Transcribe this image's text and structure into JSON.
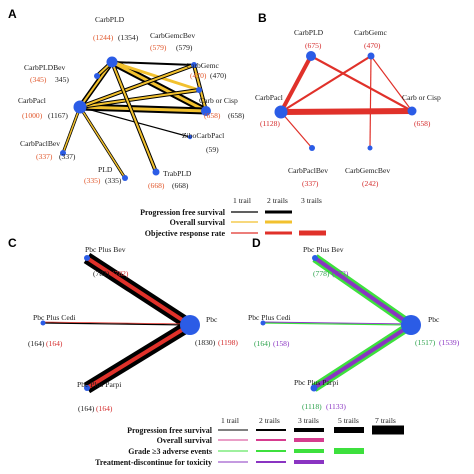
{
  "panels": [
    "A",
    "B",
    "C",
    "D"
  ],
  "legend_top": {
    "headers": [
      "1 trail",
      "2 trails",
      "3 trails"
    ],
    "rows": [
      {
        "label": "Progression free survival",
        "color": "#000000",
        "levels": [
          1,
          2
        ]
      },
      {
        "label": "Overall survival",
        "color": "#f2c12e",
        "levels": [
          1,
          2
        ]
      },
      {
        "label": "Objective response rate",
        "color": "#e0312a",
        "levels": [
          1,
          2,
          3
        ]
      }
    ]
  },
  "legend_bottom": {
    "headers": [
      "1 trail",
      "2 trails",
      "3 trails",
      "5 trails",
      "7 trails"
    ],
    "rows": [
      {
        "label": "Progression free survival",
        "color": "#000000",
        "levels": [
          1,
          2,
          3,
          4,
          5
        ]
      },
      {
        "label": "Overall survival",
        "color": "#d63c8f",
        "levels": [
          1,
          2,
          3
        ]
      },
      {
        "label": "Grade ≥3 adverse events",
        "color": "#3de03d",
        "levels": [
          1,
          2,
          3,
          4
        ]
      },
      {
        "label": "Treatment-discontinue for toxicity",
        "color": "#8a34c2",
        "levels": [
          1,
          2,
          3
        ]
      }
    ]
  },
  "panel_a": {
    "nodes": [
      {
        "name": "CarbPLD",
        "v1": "(1244)",
        "v2": "(1354)"
      },
      {
        "name": "CarbGemcBev",
        "v1": "(579)",
        "v2": "(579)"
      },
      {
        "name": "CarbPLDBev",
        "v1": "(345)",
        "v2": "345)"
      },
      {
        "name": "CarbGemc",
        "v1": "(470)",
        "v2": "(470)"
      },
      {
        "name": "CarbPacl",
        "v1": "(1000)",
        "v2": "(1167)"
      },
      {
        "name": "Carb or Cisp",
        "v1": "(658)",
        "v2": "(658)"
      },
      {
        "name": "ZiboCarbPacl",
        "v1": "",
        "v2": "(59)"
      },
      {
        "name": "CarbPaclBev",
        "v1": "(337)",
        "v2": "(337)"
      },
      {
        "name": "PLD",
        "v1": "(335)",
        "v2": "(335)"
      },
      {
        "name": "TrabPLD",
        "v1": "(668)",
        "v2": "(668)"
      }
    ]
  },
  "panel_b": {
    "nodes": [
      {
        "name": "CarbPLD",
        "v": "(675)"
      },
      {
        "name": "CarbGemc",
        "v": "(470)"
      },
      {
        "name": "CarbPacl",
        "v": "(1128)"
      },
      {
        "name": "Carb or Cisp",
        "v": "(658)"
      },
      {
        "name": "CarbPaclBev",
        "v": "(337)"
      },
      {
        "name": "CarbGemcBev",
        "v": "(242)"
      }
    ]
  },
  "panel_c": {
    "nodes": [
      {
        "name": "Pbc Plus Bev",
        "v1": "(782)",
        "v2": "(782)"
      },
      {
        "name": "Pbc Plus Cedi",
        "v1": "(164)",
        "v2": "(164)"
      },
      {
        "name": "Pbc",
        "v1": "(1830)",
        "v2": "(1198)"
      },
      {
        "name": "Pbc Plus Parpi",
        "v1": "(164)",
        "v2": "(164)"
      }
    ]
  },
  "panel_d": {
    "nodes": [
      {
        "name": "Pbc Plus Bev",
        "v1": "(778)",
        "v2": "(773)"
      },
      {
        "name": "Pbc Plus Cedi",
        "v1": "(164)",
        "v2": "(158)"
      },
      {
        "name": "Pbc",
        "v1": "(1517)",
        "v2": "(1539)"
      },
      {
        "name": "Pbc Plus Parpi",
        "v1": "(1118)",
        "v2": "(1133)"
      }
    ]
  }
}
